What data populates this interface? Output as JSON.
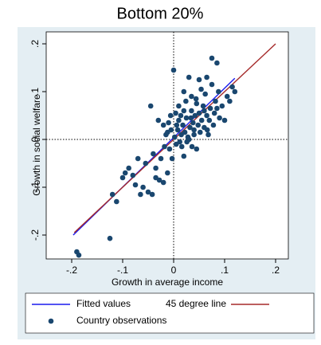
{
  "chart_data": {
    "type": "scatter",
    "title": "Bottom 20%",
    "x_label": "Growth in average income",
    "y_label": "Growth in social welfare",
    "xlim": [
      -0.25,
      0.225
    ],
    "ylim": [
      -0.25,
      0.225
    ],
    "xticks": [
      {
        "value": -0.2,
        "label": "-.2"
      },
      {
        "value": -0.1,
        "label": "-.1"
      },
      0,
      {
        "value": 0.1,
        "label": ".1"
      },
      {
        "value": 0.2,
        "label": ".2"
      }
    ],
    "yticks": [
      {
        "value": -0.2,
        "label": "-.2"
      },
      {
        "value": -0.1,
        "label": "-.1"
      },
      0,
      {
        "value": 0.1,
        "label": ".1"
      },
      {
        "value": 0.2,
        "label": ".2"
      }
    ],
    "reference_lines": {
      "x": 0,
      "y": 0
    },
    "series": [
      {
        "name": "Fitted values",
        "kind": "line",
        "color": "#1a1aee",
        "x": [
          -0.197,
          0.12
        ],
        "values": [
          -0.2,
          0.128
        ]
      },
      {
        "name": "45 degree line",
        "kind": "line",
        "color": "#a52a2a",
        "x": [
          -0.195,
          0.2
        ],
        "values": [
          -0.195,
          0.2
        ]
      },
      {
        "name": "Country observations",
        "kind": "point",
        "color": "#1a476f",
        "x": [
          -0.19,
          -0.186,
          -0.125,
          -0.12,
          -0.112,
          -0.1,
          -0.095,
          -0.088,
          -0.075,
          -0.065,
          -0.06,
          -0.05,
          -0.042,
          -0.035,
          -0.028,
          -0.02,
          -0.012,
          -0.045,
          -0.03,
          -0.02,
          -0.015,
          -0.01,
          -0.008,
          -0.005,
          0,
          0.002,
          0.005,
          0.008,
          0.01,
          0.012,
          0.015,
          0.018,
          0.02,
          0.02,
          0.022,
          0.025,
          0.028,
          0.03,
          0.03,
          0.032,
          0.035,
          0.035,
          0.038,
          0.04,
          0.042,
          0.045,
          0.045,
          0.048,
          0.05,
          0.05,
          0.052,
          0.055,
          0.058,
          0.06,
          0.062,
          0.065,
          0.065,
          0.068,
          0.07,
          0.072,
          0.075,
          0.075,
          0.078,
          0.08,
          0.082,
          0.085,
          0.085,
          0.088,
          0.09,
          0.095,
          0.1,
          0.105,
          0.11,
          0.115,
          0.12,
          -0.07,
          -0.055,
          -0.04,
          -0.025,
          -0.018,
          -0.012,
          -0.003,
          0.006,
          0.014,
          0.016,
          0.024,
          0.026,
          0.034,
          0.04,
          0.044,
          0.054,
          0.06,
          0.066,
          0.004,
          -0.006,
          0.01,
          0.02,
          0.036,
          -0.08,
          -0.035
        ],
        "values": [
          -0.235,
          -0.242,
          -0.207,
          -0.115,
          -0.13,
          -0.08,
          -0.07,
          -0.06,
          -0.095,
          -0.115,
          -0.1,
          -0.11,
          -0.115,
          -0.08,
          -0.085,
          -0.09,
          -0.07,
          0.07,
          0.04,
          0.03,
          0.01,
          0.035,
          -0.02,
          0.02,
          0.145,
          0.005,
          -0.01,
          0.02,
          0.04,
          -0.005,
          0.01,
          0.03,
          -0.035,
          0.06,
          0.015,
          0.045,
          0.005,
          0,
          0.13,
          0.025,
          0.06,
          0.09,
          0.035,
          0.01,
          0.05,
          -0.02,
          0.075,
          0.03,
          0.125,
          0.055,
          0.015,
          0.04,
          0.07,
          0.025,
          0.095,
          0.13,
          0.05,
          0.01,
          0.04,
          0.065,
          0.115,
          0.17,
          0.03,
          0.055,
          0.08,
          0.16,
          0.065,
          0.1,
          0.045,
          0.07,
          0.04,
          0.09,
          0.08,
          0.11,
          0.1,
          -0.04,
          -0.05,
          -0.03,
          -0.04,
          -0.015,
          0.015,
          -0.04,
          0.03,
          0.05,
          -0.015,
          0.08,
          -0.005,
          0.045,
          0.02,
          0.085,
          0.105,
          0.06,
          0.02,
          0.055,
          0.05,
          0.07,
          0.1,
          -0.015,
          -0.075,
          -0.06
        ]
      }
    ]
  }
}
